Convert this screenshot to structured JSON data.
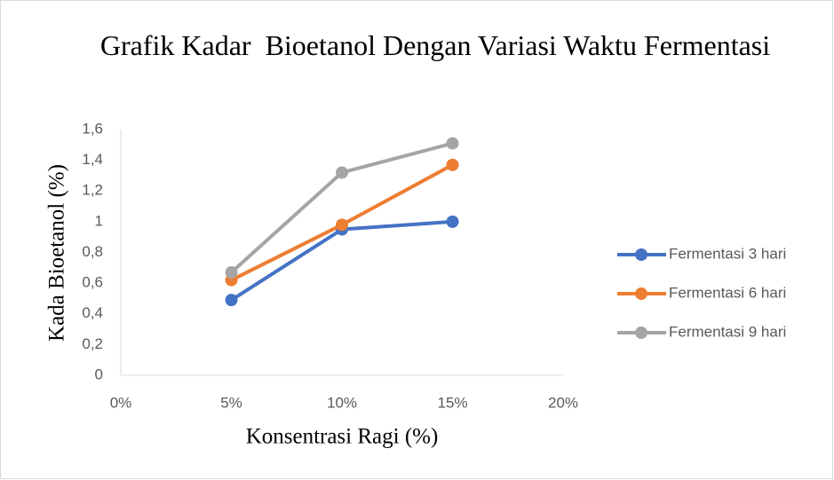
{
  "chart_data": {
    "type": "line",
    "title": "Grafik Kadar  Bioetanol Dengan Variasi Waktu Fermentasi",
    "x_label": "Konsentrasi Ragi (%)",
    "y_label": "Kada Bioetanol (%)",
    "x": [
      5,
      10,
      15
    ],
    "series": [
      {
        "name": "Fermentasi 3 hari",
        "color": "#4472c4",
        "values": [
          0.49,
          0.95,
          1.0
        ]
      },
      {
        "name": "Fermentasi 6 hari",
        "color": "#ed7d31",
        "values": [
          0.62,
          0.98,
          1.37
        ]
      },
      {
        "name": "Fermentasi 9 hari",
        "color": "#a5a5a5",
        "values": [
          0.67,
          1.32,
          1.51
        ]
      }
    ],
    "xlim": [
      0,
      20
    ],
    "xticks": [
      {
        "value": 0,
        "label": "0%"
      },
      {
        "value": 5,
        "label": "5%"
      },
      {
        "value": 10,
        "label": "10%"
      },
      {
        "value": 15,
        "label": "15%"
      },
      {
        "value": 20,
        "label": "20%"
      }
    ],
    "ylim": [
      0,
      1.6
    ],
    "yticks": [
      0,
      {
        "value": 0.2,
        "label": "0,2"
      },
      {
        "value": 0.4,
        "label": "0,4"
      },
      {
        "value": 0.6,
        "label": "0,6"
      },
      {
        "value": 0.8,
        "label": "0,8"
      },
      1,
      {
        "value": 1.2,
        "label": "1,2"
      },
      {
        "value": 1.4,
        "label": "1,4"
      },
      {
        "value": 1.6,
        "label": "1,6"
      }
    ],
    "grid": false,
    "legend": "right"
  }
}
